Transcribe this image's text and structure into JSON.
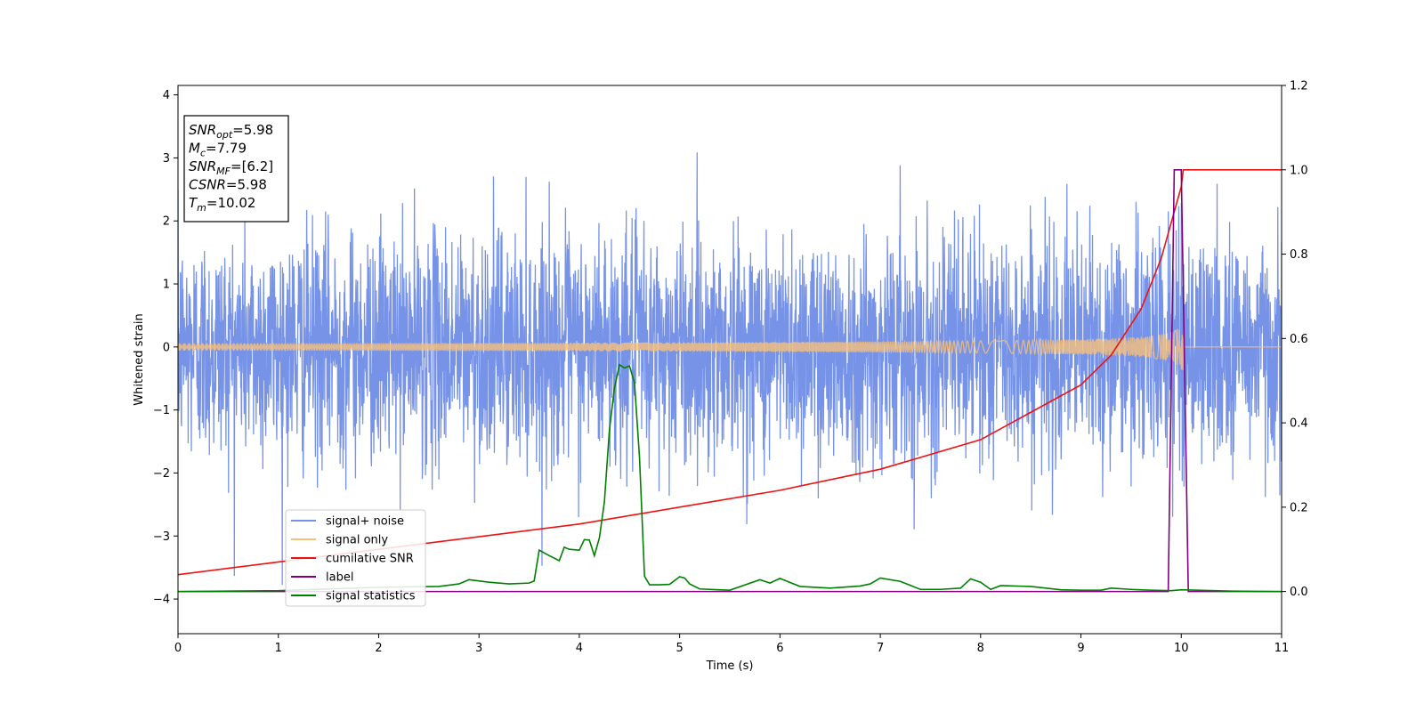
{
  "chart_data": {
    "type": "line",
    "title": "",
    "xlabel": "Time (s)",
    "ylabel_left": "Whitened strain",
    "ylabel_right": "",
    "xlim": [
      0,
      11
    ],
    "ylim_left": [
      -4.55,
      4.15
    ],
    "ylim_right": [
      -0.1,
      1.2
    ],
    "x_ticks": [
      0,
      1,
      2,
      3,
      4,
      5,
      6,
      7,
      8,
      9,
      10,
      11
    ],
    "y_ticks_left": [
      -4,
      -3,
      -2,
      -1,
      0,
      1,
      2,
      3,
      4
    ],
    "y_ticks_right": [
      0.0,
      0.2,
      0.4,
      0.6,
      0.8,
      1.0,
      1.2
    ],
    "y_ticks_right_labels": [
      "0.0",
      "0.2",
      "0.4",
      "0.6",
      "0.8",
      "1.0",
      "1.2"
    ],
    "grid": false,
    "legend_position": "lower-left",
    "info_box": {
      "lines": [
        {
          "symbol": "SNR",
          "sub": "opt",
          "value": "=5.98"
        },
        {
          "symbol": "M",
          "sub": "c",
          "value": "=7.79"
        },
        {
          "symbol": "SNR",
          "sub": "MF",
          "value": "=[6.2]"
        },
        {
          "symbol": "CSNR",
          "sub": "",
          "value": "=5.98"
        },
        {
          "symbol": "T",
          "sub": "m",
          "value": "=10.02"
        }
      ]
    },
    "series": [
      {
        "name": "signal+ noise",
        "axis": "left",
        "color": "#7793e8",
        "style": "noise",
        "sigma": 0.9,
        "range": [
          -4.2,
          3.75
        ]
      },
      {
        "name": "signal only",
        "axis": "left",
        "color": "#f5c07a",
        "style": "chirp",
        "merger_time": 10.02,
        "peak_amplitude": 0.45
      },
      {
        "name": "cumilative SNR",
        "axis": "right",
        "color": "#ee1111",
        "x": [
          0,
          1,
          2,
          3,
          4,
          5,
          6,
          7,
          8,
          9,
          9.3,
          9.6,
          9.8,
          10.0,
          10.02,
          11
        ],
        "y": [
          0.04,
          0.07,
          0.1,
          0.13,
          0.16,
          0.2,
          0.24,
          0.29,
          0.36,
          0.49,
          0.56,
          0.67,
          0.79,
          0.96,
          1.0,
          1.0
        ]
      },
      {
        "name": "label",
        "axis": "right",
        "color": "#800080",
        "x": [
          0,
          9.87,
          9.93,
          10.0,
          10.07,
          11
        ],
        "y": [
          0,
          0,
          1.0,
          1.0,
          0,
          0
        ]
      },
      {
        "name": "signal statistics",
        "axis": "right",
        "color": "#008000",
        "x": [
          0,
          1,
          2,
          2.6,
          2.8,
          2.9,
          3.1,
          3.3,
          3.5,
          3.55,
          3.6,
          3.7,
          3.8,
          3.85,
          3.9,
          4.0,
          4.05,
          4.1,
          4.15,
          4.2,
          4.25,
          4.3,
          4.35,
          4.4,
          4.45,
          4.5,
          4.55,
          4.6,
          4.65,
          4.7,
          4.75,
          4.8,
          4.9,
          5.0,
          5.05,
          5.1,
          5.2,
          5.5,
          5.8,
          5.9,
          6.0,
          6.2,
          6.5,
          6.8,
          6.9,
          7.0,
          7.2,
          7.4,
          7.6,
          7.8,
          7.9,
          8.0,
          8.1,
          8.2,
          8.5,
          8.8,
          9.0,
          9.2,
          9.3,
          9.5,
          9.7,
          9.9,
          10.0,
          10.5,
          11
        ],
        "y": [
          0.0,
          0.002,
          0.01,
          0.012,
          0.018,
          0.028,
          0.022,
          0.018,
          0.02,
          0.025,
          0.098,
          0.085,
          0.073,
          0.105,
          0.1,
          0.098,
          0.123,
          0.122,
          0.085,
          0.127,
          0.212,
          0.383,
          0.482,
          0.538,
          0.53,
          0.535,
          0.495,
          0.318,
          0.036,
          0.016,
          0.016,
          0.016,
          0.017,
          0.035,
          0.032,
          0.018,
          0.006,
          0.003,
          0.028,
          0.02,
          0.031,
          0.012,
          0.008,
          0.013,
          0.018,
          0.032,
          0.024,
          0.005,
          0.005,
          0.008,
          0.03,
          0.022,
          0.005,
          0.014,
          0.012,
          0.004,
          0.003,
          0.003,
          0.008,
          0.005,
          0.003,
          0.002,
          0.004,
          0.001,
          0.0
        ]
      }
    ]
  }
}
